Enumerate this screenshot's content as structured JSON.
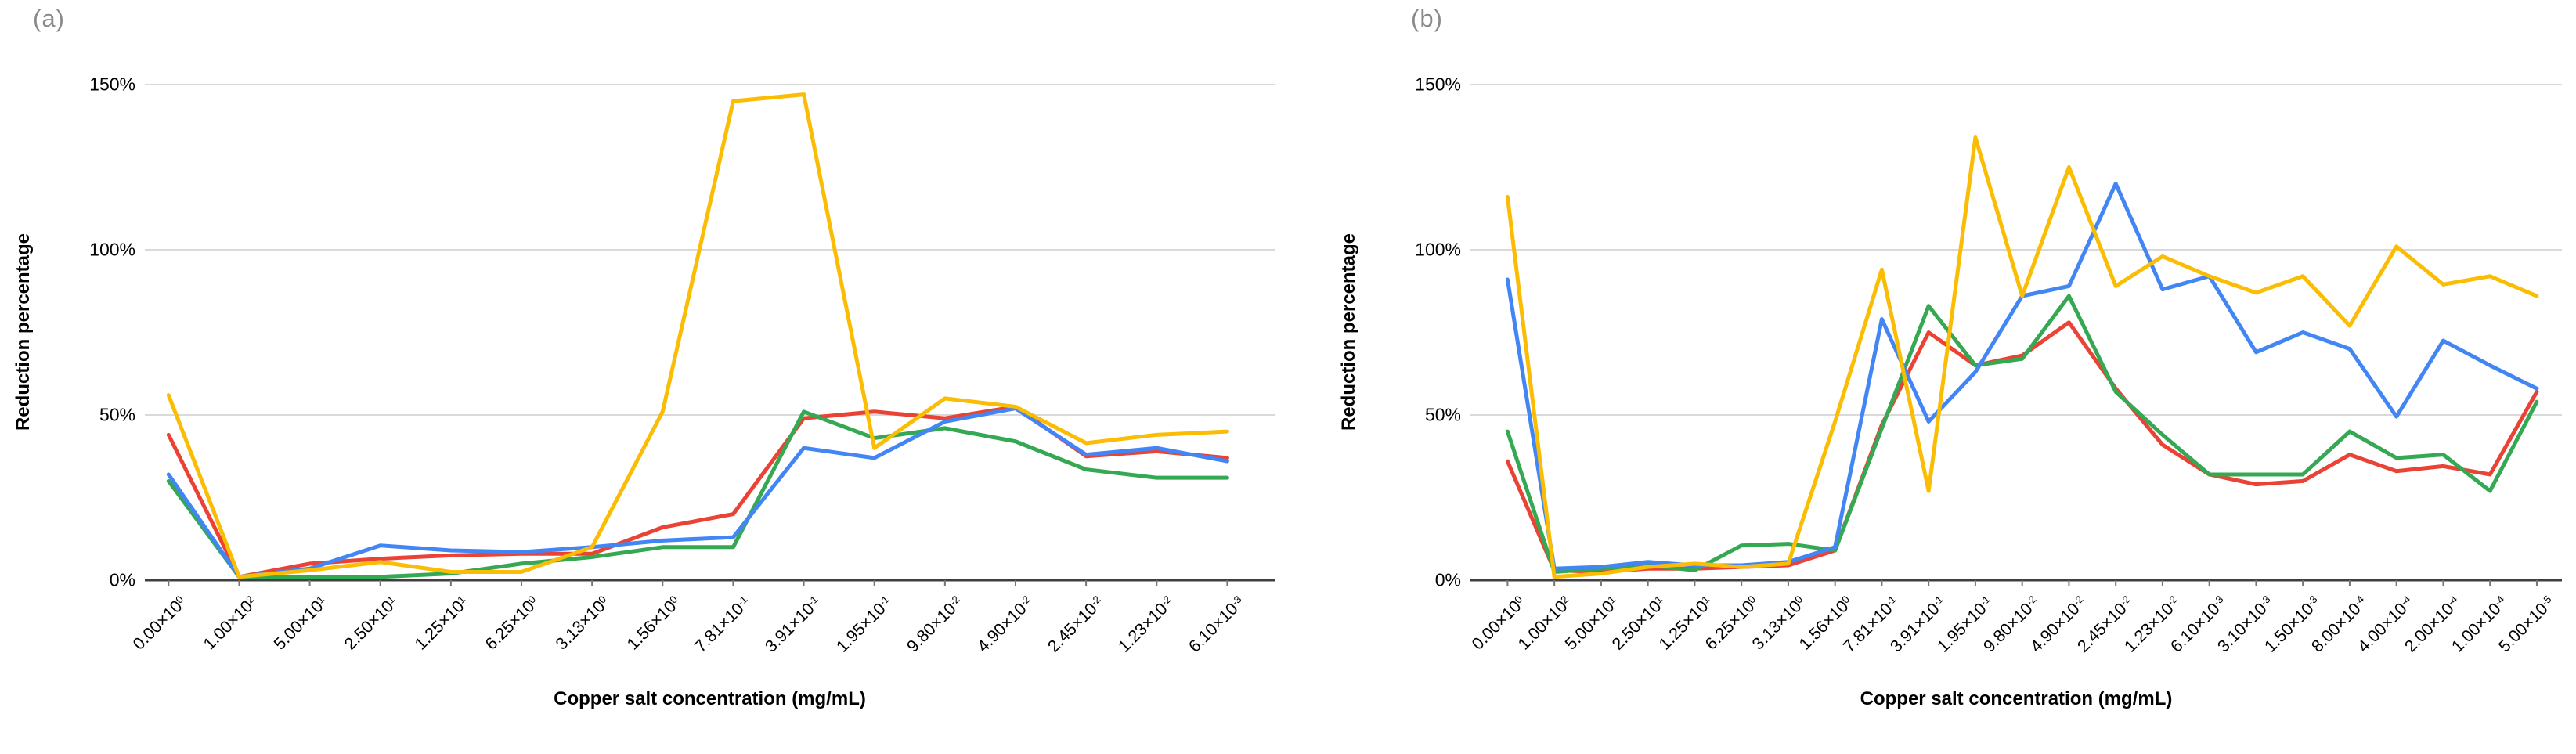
{
  "figure": {
    "background": "#ffffff",
    "grid_color": "#d9d9d9",
    "axis_color": "#3f3f3f",
    "tick_mark_color": "#757575",
    "text_color": "#000000",
    "corner_label_color": "#8a8a8a",
    "palette": {
      "blue": "#4285F4",
      "red": "#EA4335",
      "yellow": "#FBBC04",
      "green": "#34A853"
    }
  },
  "chart_data": [
    {
      "type": "line",
      "panel_label": "(a)",
      "xlabel": "Copper salt concentration (mg/mL)",
      "ylabel": "Reduction percentage",
      "ylim": [
        0,
        150
      ],
      "grid": "horizontal",
      "legend": "none",
      "yticks": [
        {
          "value": 0,
          "label": "0%"
        },
        {
          "value": 50,
          "label": "50%"
        },
        {
          "value": 100,
          "label": "100%"
        },
        {
          "value": 150,
          "label": "150%"
        }
      ],
      "categories": [
        "0.00×10^0",
        "1.00×10^2",
        "5.00×10^1",
        "2.50×10^1",
        "1.25×10^1",
        "6.25×10^0",
        "3.13×10^0",
        "1.56×10^0",
        "7.81×10^-1",
        "3.91×10^-1",
        "1.95×10^-1",
        "9.80×10^-2",
        "4.90×10^-2",
        "2.45×10^-2",
        "1.23×10^-2",
        "6.10×10^-3"
      ],
      "series": [
        {
          "name": "red",
          "color": "red",
          "values": [
            44,
            1,
            5,
            6.5,
            7.5,
            8,
            8,
            16,
            20,
            49,
            51,
            49,
            52.5,
            37.5,
            39,
            37
          ]
        },
        {
          "name": "green",
          "color": "green",
          "values": [
            30,
            1,
            1,
            1,
            2,
            5,
            7,
            10,
            10,
            51,
            43,
            46,
            42,
            33.5,
            31,
            31
          ]
        },
        {
          "name": "blue",
          "color": "blue",
          "values": [
            32,
            1,
            3.5,
            10.5,
            9,
            8.5,
            10,
            12,
            13,
            40,
            37,
            48,
            52,
            38,
            40,
            36
          ]
        },
        {
          "name": "yellow",
          "color": "yellow",
          "values": [
            56,
            1,
            3,
            5.5,
            2.5,
            2.5,
            10,
            51,
            145,
            147,
            40,
            55,
            52.5,
            41.5,
            44,
            45
          ]
        }
      ]
    },
    {
      "type": "line",
      "panel_label": "(b)",
      "xlabel": "Copper salt concentration (mg/mL)",
      "ylabel": "Reduction percentage",
      "ylim": [
        0,
        150
      ],
      "grid": "horizontal",
      "legend": "none",
      "yticks": [
        {
          "value": 0,
          "label": "0%"
        },
        {
          "value": 50,
          "label": "50%"
        },
        {
          "value": 100,
          "label": "100%"
        },
        {
          "value": 150,
          "label": "150%"
        }
      ],
      "categories": [
        "0.00×10^0",
        "1.00×10^2",
        "5.00×10^1",
        "2.50×10^1",
        "1.25×10^1",
        "6.25×10^0",
        "3.13×10^0",
        "1.56×10^0",
        "7.81×10^-1",
        "3.91×10^-1",
        "1.95×10^-1",
        "9.80×10^-2",
        "4.90×10^-2",
        "2.45×10^-2",
        "1.23×10^-2",
        "6.10×10^-3",
        "3.10×10^-3",
        "1.50×10^-3",
        "8.00×10^-4",
        "4.00×10^-4",
        "2.00×10^-4",
        "1.00×10^-4",
        "5.00×10^-5"
      ],
      "series": [
        {
          "name": "red",
          "color": "red",
          "values": [
            36,
            3,
            2.5,
            3.5,
            3.5,
            4,
            4.5,
            9,
            47,
            75,
            65,
            68,
            78,
            58,
            41,
            32,
            29,
            30,
            38,
            33,
            34.5,
            32,
            57
          ]
        },
        {
          "name": "green",
          "color": "green",
          "values": [
            45,
            2.5,
            3.5,
            4.5,
            3,
            10.5,
            11,
            9,
            46,
            83,
            65,
            67,
            86,
            57,
            44,
            32,
            32,
            32,
            45,
            37,
            38,
            27,
            54
          ]
        },
        {
          "name": "blue",
          "color": "blue",
          "values": [
            91,
            3.5,
            4,
            5.5,
            4.5,
            4.5,
            5.5,
            10,
            79,
            48,
            63,
            86,
            89,
            120,
            88,
            92,
            69,
            75,
            70,
            49.5,
            72.5,
            65,
            58
          ]
        },
        {
          "name": "yellow",
          "color": "yellow",
          "values": [
            116,
            1,
            2,
            4,
            5,
            4,
            5,
            48,
            94,
            27,
            134,
            86,
            125,
            89,
            98,
            92,
            87,
            92,
            77,
            101,
            89.5,
            92,
            86
          ]
        }
      ]
    }
  ]
}
